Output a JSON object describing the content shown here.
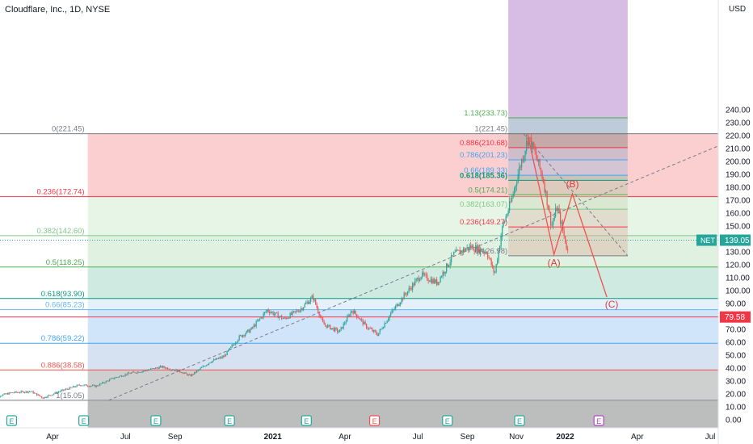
{
  "header": {
    "title": "Cloudflare, Inc., 1D, NYSE",
    "currency": "USD"
  },
  "chart_data": {
    "type": "candlestick",
    "symbol": "NET",
    "ylim": [
      -5,
      250
    ],
    "y_ticks": [
      0,
      10,
      20,
      30,
      40,
      50,
      60,
      70,
      80,
      90,
      100,
      110,
      120,
      130,
      140,
      150,
      160,
      170,
      180,
      190,
      200,
      210,
      220,
      230,
      240
    ],
    "y_tick_labels": [
      "0.00",
      "10.00",
      "20.00",
      "30.00",
      "40.00",
      "50.00",
      "60.00",
      "70.00",
      "80.00",
      "90.00",
      "100.00",
      "110.00",
      "120.00",
      "130.00",
      "140.00",
      "150.00",
      "160.00",
      "170.00",
      "180.00",
      "190.00",
      "200.00",
      "210.00",
      "220.00",
      "230.00",
      "240.00"
    ],
    "x_labels": [
      {
        "label": "Apr",
        "date": "2020-04-01"
      },
      {
        "label": "Jul",
        "date": "2020-07-01"
      },
      {
        "label": "Sep",
        "date": "2020-09-01"
      },
      {
        "label": "2021",
        "date": "2021-01-01"
      },
      {
        "label": "Apr",
        "date": "2021-04-01"
      },
      {
        "label": "Jul",
        "date": "2021-07-01"
      },
      {
        "label": "Sep",
        "date": "2021-09-01"
      },
      {
        "label": "Nov",
        "date": "2021-11-01"
      },
      {
        "label": "2022",
        "date": "2022-01-01"
      },
      {
        "label": "Apr",
        "date": "2022-04-01"
      },
      {
        "label": "Jul",
        "date": "2022-07-01"
      }
    ],
    "price_path": [
      [
        "2020-01-15",
        17
      ],
      [
        "2020-02-10",
        21
      ],
      [
        "2020-03-05",
        22
      ],
      [
        "2020-03-20",
        17
      ],
      [
        "2020-04-10",
        22
      ],
      [
        "2020-05-05",
        27
      ],
      [
        "2020-05-25",
        26
      ],
      [
        "2020-06-15",
        32
      ],
      [
        "2020-07-06",
        36
      ],
      [
        "2020-07-25",
        38
      ],
      [
        "2020-08-15",
        41
      ],
      [
        "2020-09-05",
        38
      ],
      [
        "2020-09-20",
        34
      ],
      [
        "2020-10-15",
        45
      ],
      [
        "2020-11-01",
        49
      ],
      [
        "2020-11-20",
        64
      ],
      [
        "2020-12-05",
        70
      ],
      [
        "2020-12-25",
        85
      ],
      [
        "2021-01-15",
        78
      ],
      [
        "2021-02-05",
        86
      ],
      [
        "2021-02-20",
        95
      ],
      [
        "2021-03-05",
        74
      ],
      [
        "2021-03-25",
        68
      ],
      [
        "2021-04-10",
        85
      ],
      [
        "2021-04-28",
        72
      ],
      [
        "2021-05-12",
        66
      ],
      [
        "2021-05-28",
        82
      ],
      [
        "2021-06-15",
        97
      ],
      [
        "2021-07-05",
        112
      ],
      [
        "2021-07-25",
        106
      ],
      [
        "2021-08-15",
        128
      ],
      [
        "2021-09-05",
        134
      ],
      [
        "2021-09-25",
        130
      ],
      [
        "2021-10-05",
        113
      ],
      [
        "2021-10-15",
        150
      ],
      [
        "2021-10-25",
        168
      ],
      [
        "2021-11-05",
        195
      ],
      [
        "2021-11-16",
        219
      ],
      [
        "2021-11-25",
        205
      ],
      [
        "2021-12-05",
        185
      ],
      [
        "2021-12-15",
        150
      ],
      [
        "2021-12-22",
        165
      ],
      [
        "2022-01-05",
        128
      ]
    ],
    "current_price": {
      "label": "NET",
      "value": 139.05,
      "text": "139.05",
      "color": "#26a69a"
    },
    "horizontal_line": {
      "value": 79.58,
      "text": "79.58",
      "color": "#f23645"
    },
    "fib_retracement_main": {
      "x_start": "2020-05-15",
      "x_end": "2022-07-15",
      "levels": [
        {
          "label": "0(221.45)",
          "value": 221.45,
          "color": "#787b86"
        },
        {
          "label": "0.236(172.74)",
          "value": 172.74,
          "color": "#f23645"
        },
        {
          "label": "0.382(142.60)",
          "value": 142.6,
          "color": "#81c784"
        },
        {
          "label": "0.5(118.25)",
          "value": 118.25,
          "color": "#4caf50"
        },
        {
          "label": "0.618(93.90)",
          "value": 93.9,
          "color": "#089981"
        },
        {
          "label": "0.66(85.23)",
          "value": 85.23,
          "color": "#64b5f6"
        },
        {
          "label": "0.786(59.22)",
          "value": 59.22,
          "color": "#42a5f5"
        },
        {
          "label": "0.886(38.58)",
          "value": 38.58,
          "color": "#ef5350"
        },
        {
          "label": "1(15.05)",
          "value": 15.05,
          "color": "#787b86"
        }
      ],
      "zone_colors": [
        "#f7a7a8",
        "#d3ecd4",
        "#c8e6c9",
        "#a6d9c9",
        "#cde6f7",
        "#a9d0f5",
        "#b5cbe6",
        "#a6a8a8"
      ]
    },
    "fib_retracement_secondary": {
      "x_start": "2021-10-22",
      "x_end": "2022-03-20",
      "levels": [
        {
          "label": "1.13(233.73)",
          "value": 233.73,
          "color": "#4caf50"
        },
        {
          "label": "1(221.45)",
          "value": 221.45,
          "color": "#787b86"
        },
        {
          "label": "0.886(210.68)",
          "value": 210.68,
          "color": "#f23645"
        },
        {
          "label": "0.786(201.23)",
          "value": 201.23,
          "color": "#42a5f5"
        },
        {
          "label": "0.66(189.33)",
          "value": 189.33,
          "color": "#42a5f5"
        },
        {
          "label": "0.618(185.36)",
          "value": 185.36,
          "color": "#089981"
        },
        {
          "label": "0.5(174.21)",
          "value": 174.21,
          "color": "#4caf50"
        },
        {
          "label": "0.382(163.07)",
          "value": 163.07,
          "color": "#81c784"
        },
        {
          "label": "0.236(149.27)",
          "value": 149.27,
          "color": "#f23645"
        },
        {
          "label": "0(126.98)",
          "value": 126.98,
          "color": "#787b86"
        }
      ],
      "top_extension": {
        "from": 233.73,
        "to": 252,
        "color": "#c9a6d9"
      },
      "zone_colors": [
        "#6c8fa8",
        "#867a7a",
        "#9aa7c7",
        "#a5b9d9",
        "#8cb5a0",
        "#b9c7a8",
        "#c9d9b9",
        "#d9c0b0",
        "#d9b5a5"
      ]
    },
    "trend_line": {
      "points": [
        [
          "2020-06-10",
          15.05
        ],
        [
          "2022-07-15",
          213
        ]
      ],
      "color": "#787b86",
      "style": "dashed"
    },
    "trend_line_2": {
      "points": [
        [
          "2021-11-10",
          221.45
        ],
        [
          "2022-03-20",
          126.98
        ]
      ],
      "color": "#787b86",
      "style": "dashed"
    },
    "wave_projection": {
      "points": [
        [
          "2021-11-15",
          221.45
        ],
        [
          "2021-12-18",
          128
        ],
        [
          "2022-01-10",
          175
        ],
        [
          "2022-02-22",
          95
        ]
      ],
      "labels": [
        {
          "text": "(A)",
          "date": "2021-12-18",
          "value": 119
        },
        {
          "text": "(B)",
          "date": "2022-01-10",
          "value": 180
        },
        {
          "text": "(C)",
          "date": "2022-02-28",
          "value": 87
        }
      ],
      "color": "#ef5350"
    },
    "earnings_markers": [
      {
        "text": "E",
        "date": "2020-02-10",
        "color": "#26a69a"
      },
      {
        "text": "E",
        "date": "2020-05-10",
        "color": "#26a69a"
      },
      {
        "text": "E",
        "date": "2020-08-08",
        "color": "#26a69a"
      },
      {
        "text": "E",
        "date": "2020-11-08",
        "color": "#26a69a"
      },
      {
        "text": "E",
        "date": "2021-02-12",
        "color": "#26a69a"
      },
      {
        "text": "E",
        "date": "2021-05-08",
        "color": "#ef5350"
      },
      {
        "text": "E",
        "date": "2021-08-07",
        "color": "#26a69a"
      },
      {
        "text": "E",
        "date": "2021-11-05",
        "color": "#26a69a"
      },
      {
        "text": "E",
        "date": "2022-02-12",
        "color": "#ab47bc"
      }
    ]
  }
}
